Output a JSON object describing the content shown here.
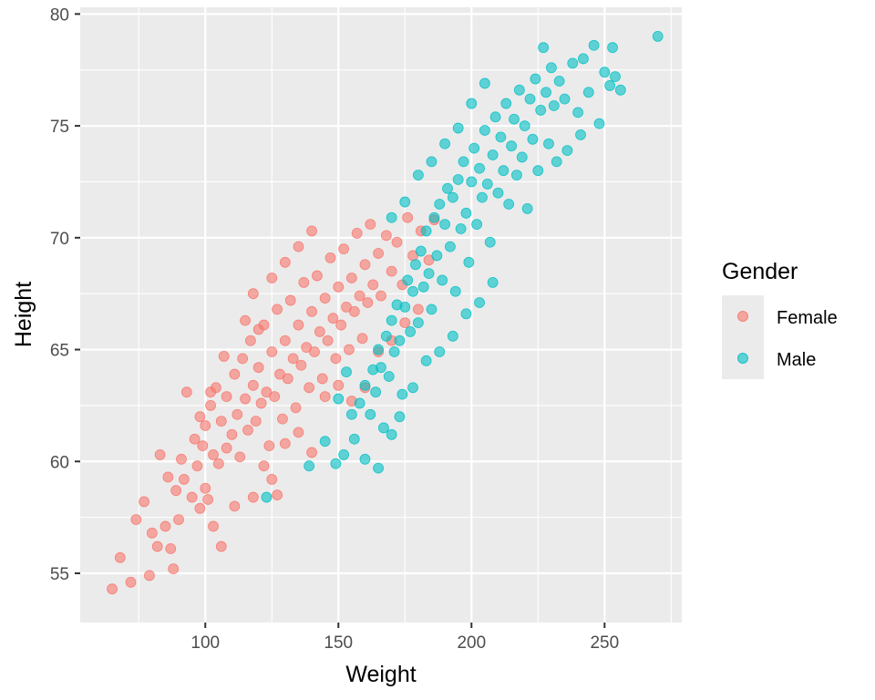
{
  "chart_data": {
    "type": "scatter",
    "title": "",
    "xlabel": "Weight",
    "ylabel": "Height",
    "xlim": [
      53,
      279
    ],
    "ylim": [
      52.8,
      80.3
    ],
    "x_ticks": [
      100,
      150,
      200,
      250
    ],
    "y_ticks": [
      55,
      60,
      65,
      70,
      75,
      80
    ],
    "x_tick_labels": [
      "100",
      "150",
      "200",
      "250"
    ],
    "y_tick_labels": [
      "55",
      "60",
      "65",
      "70",
      "75",
      "80"
    ],
    "grid": true,
    "legend": {
      "title": "Gender",
      "position": "right"
    },
    "series": [
      {
        "name": "Female",
        "color": "#F8766D",
        "points": [
          [
            65,
            54.3
          ],
          [
            68,
            55.7
          ],
          [
            72,
            54.6
          ],
          [
            74,
            57.4
          ],
          [
            77,
            58.2
          ],
          [
            79,
            54.9
          ],
          [
            80,
            56.8
          ],
          [
            82,
            56.2
          ],
          [
            83,
            60.3
          ],
          [
            85,
            57.1
          ],
          [
            86,
            59.3
          ],
          [
            87,
            56.1
          ],
          [
            88,
            55.2
          ],
          [
            89,
            58.7
          ],
          [
            90,
            57.4
          ],
          [
            91,
            60.1
          ],
          [
            92,
            59.2
          ],
          [
            93,
            63.1
          ],
          [
            95,
            58.4
          ],
          [
            96,
            61.0
          ],
          [
            97,
            59.8
          ],
          [
            98,
            62.0
          ],
          [
            99,
            60.7
          ],
          [
            100,
            58.8
          ],
          [
            100,
            61.6
          ],
          [
            102,
            62.5
          ],
          [
            103,
            60.3
          ],
          [
            104,
            63.3
          ],
          [
            105,
            59.9
          ],
          [
            106,
            61.8
          ],
          [
            107,
            64.7
          ],
          [
            108,
            60.6
          ],
          [
            108,
            62.9
          ],
          [
            110,
            61.2
          ],
          [
            111,
            63.9
          ],
          [
            112,
            62.1
          ],
          [
            113,
            60.2
          ],
          [
            114,
            64.6
          ],
          [
            115,
            62.8
          ],
          [
            116,
            61.4
          ],
          [
            117,
            65.4
          ],
          [
            118,
            63.4
          ],
          [
            119,
            61.8
          ],
          [
            120,
            64.2
          ],
          [
            121,
            62.6
          ],
          [
            122,
            66.1
          ],
          [
            123,
            63.1
          ],
          [
            124,
            60.7
          ],
          [
            125,
            64.9
          ],
          [
            126,
            62.9
          ],
          [
            127,
            66.8
          ],
          [
            128,
            63.9
          ],
          [
            129,
            61.9
          ],
          [
            130,
            65.4
          ],
          [
            131,
            63.7
          ],
          [
            132,
            67.2
          ],
          [
            133,
            64.6
          ],
          [
            134,
            62.4
          ],
          [
            135,
            66.1
          ],
          [
            136,
            64.3
          ],
          [
            137,
            68.0
          ],
          [
            138,
            65.1
          ],
          [
            139,
            63.3
          ],
          [
            140,
            66.7
          ],
          [
            141,
            64.9
          ],
          [
            142,
            68.3
          ],
          [
            143,
            65.8
          ],
          [
            144,
            63.7
          ],
          [
            145,
            67.3
          ],
          [
            146,
            65.4
          ],
          [
            147,
            69.1
          ],
          [
            148,
            66.4
          ],
          [
            149,
            64.6
          ],
          [
            150,
            67.8
          ],
          [
            151,
            66.1
          ],
          [
            152,
            69.5
          ],
          [
            153,
            66.9
          ],
          [
            154,
            65.0
          ],
          [
            155,
            68.2
          ],
          [
            156,
            66.7
          ],
          [
            157,
            70.2
          ],
          [
            158,
            67.4
          ],
          [
            159,
            65.5
          ],
          [
            160,
            68.8
          ],
          [
            161,
            67.1
          ],
          [
            162,
            70.6
          ],
          [
            163,
            67.9
          ],
          [
            165,
            69.3
          ],
          [
            166,
            67.4
          ],
          [
            168,
            70.1
          ],
          [
            170,
            68.5
          ],
          [
            172,
            69.8
          ],
          [
            174,
            67.9
          ],
          [
            176,
            70.9
          ],
          [
            178,
            69.2
          ],
          [
            181,
            70.3
          ],
          [
            184,
            69.0
          ],
          [
            186,
            70.8
          ],
          [
            125,
            59.2
          ],
          [
            130,
            60.8
          ],
          [
            135,
            61.3
          ],
          [
            140,
            60.4
          ],
          [
            145,
            62.9
          ],
          [
            150,
            63.4
          ],
          [
            155,
            62.7
          ],
          [
            160,
            63.3
          ],
          [
            165,
            64.9
          ],
          [
            170,
            65.4
          ],
          [
            175,
            66.2
          ],
          [
            180,
            66.8
          ],
          [
            115,
            66.3
          ],
          [
            118,
            67.5
          ],
          [
            120,
            65.9
          ],
          [
            125,
            68.2
          ],
          [
            130,
            68.9
          ],
          [
            135,
            69.6
          ],
          [
            140,
            70.3
          ],
          [
            98,
            57.9
          ],
          [
            101,
            58.3
          ],
          [
            103,
            57.1
          ],
          [
            106,
            56.2
          ],
          [
            111,
            58.0
          ],
          [
            118,
            58.4
          ],
          [
            122,
            59.8
          ],
          [
            127,
            58.5
          ],
          [
            102,
            63.1
          ]
        ]
      },
      {
        "name": "Male",
        "color": "#00BFC4",
        "points": [
          [
            123,
            58.4
          ],
          [
            139,
            59.8
          ],
          [
            145,
            60.9
          ],
          [
            149,
            59.9
          ],
          [
            152,
            60.3
          ],
          [
            155,
            62.1
          ],
          [
            156,
            61.0
          ],
          [
            158,
            62.6
          ],
          [
            160,
            63.4
          ],
          [
            162,
            62.1
          ],
          [
            163,
            64.1
          ],
          [
            164,
            63.1
          ],
          [
            165,
            65.0
          ],
          [
            166,
            64.2
          ],
          [
            167,
            61.5
          ],
          [
            168,
            65.6
          ],
          [
            169,
            63.8
          ],
          [
            170,
            66.3
          ],
          [
            171,
            64.9
          ],
          [
            172,
            67.0
          ],
          [
            173,
            65.4
          ],
          [
            174,
            63.0
          ],
          [
            175,
            66.9
          ],
          [
            176,
            68.1
          ],
          [
            177,
            65.8
          ],
          [
            178,
            67.6
          ],
          [
            179,
            68.8
          ],
          [
            180,
            66.2
          ],
          [
            181,
            69.4
          ],
          [
            182,
            67.8
          ],
          [
            183,
            70.3
          ],
          [
            184,
            68.4
          ],
          [
            185,
            66.8
          ],
          [
            186,
            70.9
          ],
          [
            187,
            69.2
          ],
          [
            188,
            71.5
          ],
          [
            189,
            68.1
          ],
          [
            190,
            70.6
          ],
          [
            191,
            72.2
          ],
          [
            192,
            69.6
          ],
          [
            193,
            71.8
          ],
          [
            194,
            67.6
          ],
          [
            195,
            72.6
          ],
          [
            196,
            70.4
          ],
          [
            197,
            73.4
          ],
          [
            198,
            71.1
          ],
          [
            199,
            68.9
          ],
          [
            200,
            72.5
          ],
          [
            201,
            74.0
          ],
          [
            202,
            70.6
          ],
          [
            203,
            73.1
          ],
          [
            204,
            71.8
          ],
          [
            205,
            74.8
          ],
          [
            206,
            72.4
          ],
          [
            207,
            69.8
          ],
          [
            208,
            73.7
          ],
          [
            209,
            75.4
          ],
          [
            210,
            72.0
          ],
          [
            211,
            74.5
          ],
          [
            212,
            73.0
          ],
          [
            213,
            76.0
          ],
          [
            214,
            71.5
          ],
          [
            215,
            74.1
          ],
          [
            216,
            75.3
          ],
          [
            217,
            72.8
          ],
          [
            218,
            76.6
          ],
          [
            219,
            73.6
          ],
          [
            220,
            75.0
          ],
          [
            221,
            71.3
          ],
          [
            222,
            76.2
          ],
          [
            223,
            74.4
          ],
          [
            224,
            77.1
          ],
          [
            225,
            73.0
          ],
          [
            226,
            75.7
          ],
          [
            227,
            78.5
          ],
          [
            228,
            76.5
          ],
          [
            229,
            74.2
          ],
          [
            230,
            77.6
          ],
          [
            231,
            75.9
          ],
          [
            232,
            73.4
          ],
          [
            233,
            77.0
          ],
          [
            235,
            76.2
          ],
          [
            236,
            73.9
          ],
          [
            238,
            77.8
          ],
          [
            240,
            75.6
          ],
          [
            241,
            74.6
          ],
          [
            242,
            78.0
          ],
          [
            244,
            76.5
          ],
          [
            246,
            78.6
          ],
          [
            248,
            75.1
          ],
          [
            250,
            77.4
          ],
          [
            252,
            76.8
          ],
          [
            253,
            78.5
          ],
          [
            254,
            77.2
          ],
          [
            256,
            76.6
          ],
          [
            270,
            79.0
          ],
          [
            170,
            70.9
          ],
          [
            175,
            71.6
          ],
          [
            180,
            72.8
          ],
          [
            185,
            73.4
          ],
          [
            190,
            74.2
          ],
          [
            195,
            74.9
          ],
          [
            200,
            76.0
          ],
          [
            205,
            76.9
          ],
          [
            173,
            62.0
          ],
          [
            178,
            63.3
          ],
          [
            183,
            64.5
          ],
          [
            188,
            64.9
          ],
          [
            193,
            65.6
          ],
          [
            198,
            66.6
          ],
          [
            203,
            67.1
          ],
          [
            208,
            68.0
          ],
          [
            160,
            60.1
          ],
          [
            165,
            59.7
          ],
          [
            170,
            61.2
          ],
          [
            150,
            62.8
          ],
          [
            153,
            64.0
          ]
        ]
      }
    ]
  }
}
